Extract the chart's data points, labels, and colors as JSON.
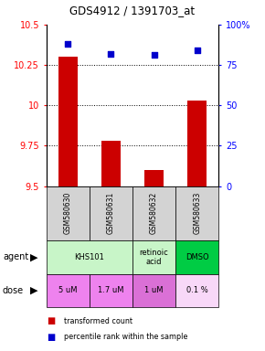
{
  "title": "GDS4912 / 1391703_at",
  "samples": [
    "GSM580630",
    "GSM580631",
    "GSM580632",
    "GSM580633"
  ],
  "transformed_counts": [
    10.3,
    9.78,
    9.6,
    10.03
  ],
  "percentile_ranks": [
    88,
    82,
    81,
    84
  ],
  "ylim_left": [
    9.5,
    10.5
  ],
  "ylim_right": [
    0,
    100
  ],
  "yticks_left": [
    9.5,
    9.75,
    10.0,
    10.25,
    10.5
  ],
  "yticks_right": [
    0,
    25,
    50,
    75,
    100
  ],
  "ytick_labels_left": [
    "9.5",
    "9.75",
    "10",
    "10.25",
    "10.5"
  ],
  "ytick_labels_right": [
    "0",
    "25",
    "50",
    "75",
    "100%"
  ],
  "bar_color": "#cc0000",
  "dot_color": "#0000cc",
  "agent_configs": [
    {
      "cols": [
        0,
        1
      ],
      "label": "KHS101",
      "color": "#c8f5c8"
    },
    {
      "cols": [
        2
      ],
      "label": "retinoic\nacid",
      "color": "#c8f5c8"
    },
    {
      "cols": [
        3
      ],
      "label": "DMSO",
      "color": "#00cc44"
    }
  ],
  "dose_row": [
    "5 uM",
    "1.7 uM",
    "1 uM",
    "0.1 %"
  ],
  "dose_colors": [
    "#ee82ee",
    "#ee82ee",
    "#da70d6",
    "#f8d8f8"
  ],
  "sample_bg_color": "#d3d3d3",
  "bar_width": 0.45,
  "grid_yticks": [
    9.75,
    10.0,
    10.25
  ]
}
